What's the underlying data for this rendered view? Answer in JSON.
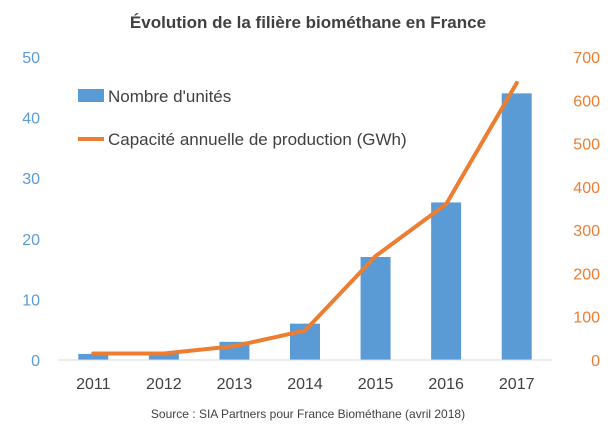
{
  "chart_data": {
    "type": "bar",
    "title": "Évolution  de la filière biométhane  en France",
    "source": "Source : SIA Partners pour France Biométhane (avril 2018)",
    "categories": [
      "2011",
      "2012",
      "2013",
      "2014",
      "2015",
      "2016",
      "2017"
    ],
    "series": [
      {
        "name": "Nombre d'unités",
        "type": "bar",
        "axis": "left",
        "values": [
          1,
          1,
          3,
          6,
          17,
          26,
          44
        ]
      },
      {
        "name": "Capacité annuelle de production (GWh)",
        "type": "line",
        "axis": "right",
        "values": [
          15,
          15,
          32,
          68,
          240,
          360,
          640
        ]
      }
    ],
    "ylim_left": [
      0,
      50
    ],
    "yticks_left": [
      "0",
      "10",
      "20",
      "30",
      "40",
      "50"
    ],
    "ylim_right": [
      0,
      700
    ],
    "yticks_right": [
      "0",
      "100",
      "200",
      "300",
      "400",
      "500",
      "600",
      "700"
    ],
    "grid": false,
    "legend_position": "top-left",
    "colors": {
      "bar": "#5B9BD5",
      "line": "#ED7D31",
      "text": "#404040",
      "axis": "#D9D9D9"
    }
  }
}
